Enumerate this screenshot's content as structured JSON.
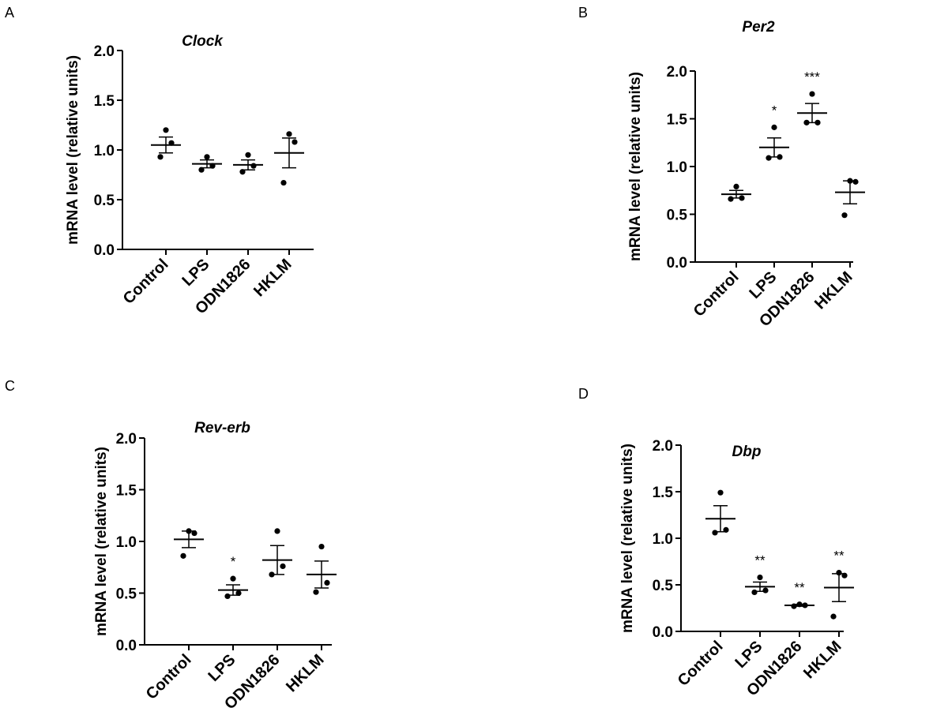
{
  "chart_data": [
    {
      "panel": "A",
      "type": "scatter",
      "title": "Clock",
      "ylabel": "mRNA level (relative units)",
      "categories": [
        "Control",
        "LPS",
        "ODN1826",
        "HKLM"
      ],
      "yticks": [
        "0.0",
        "0.5",
        "1.0",
        "1.5",
        "2.0"
      ],
      "ylim": [
        0,
        2.0
      ],
      "groups": [
        {
          "points": [
            1.2,
            1.07,
            0.93
          ],
          "mean": 1.05,
          "sem": 0.08,
          "annotation": ""
        },
        {
          "points": [
            0.93,
            0.84,
            0.8
          ],
          "mean": 0.86,
          "sem": 0.04,
          "annotation": ""
        },
        {
          "points": [
            0.95,
            0.84,
            0.78
          ],
          "mean": 0.85,
          "sem": 0.05,
          "annotation": ""
        },
        {
          "points": [
            1.16,
            1.08,
            0.67
          ],
          "mean": 0.97,
          "sem": 0.15,
          "annotation": ""
        }
      ]
    },
    {
      "panel": "B",
      "type": "scatter",
      "title": "Per2",
      "ylabel": "mRNA level (relative units)",
      "categories": [
        "Control",
        "LPS",
        "ODN1826",
        "HKLM"
      ],
      "yticks": [
        "0.0",
        "0.5",
        "1.0",
        "1.5",
        "2.0"
      ],
      "ylim": [
        0,
        2.0
      ],
      "groups": [
        {
          "points": [
            0.79,
            0.67,
            0.66
          ],
          "mean": 0.71,
          "sem": 0.04,
          "annotation": ""
        },
        {
          "points": [
            1.41,
            1.1,
            1.09
          ],
          "mean": 1.2,
          "sem": 0.1,
          "annotation": "*"
        },
        {
          "points": [
            1.76,
            1.46,
            1.46
          ],
          "mean": 1.56,
          "sem": 0.1,
          "annotation": "***"
        },
        {
          "points": [
            0.85,
            0.84,
            0.49
          ],
          "mean": 0.73,
          "sem": 0.12,
          "annotation": ""
        }
      ]
    },
    {
      "panel": "C",
      "type": "scatter",
      "title": "Rev-erb",
      "ylabel": "mRNA level (relative units)",
      "categories": [
        "Control",
        "LPS",
        "ODN1826",
        "HKLM"
      ],
      "yticks": [
        "0.0",
        "0.5",
        "1.0",
        "1.5",
        "2.0"
      ],
      "ylim": [
        0,
        2.0
      ],
      "groups": [
        {
          "points": [
            1.1,
            1.08,
            0.86
          ],
          "mean": 1.02,
          "sem": 0.08,
          "annotation": ""
        },
        {
          "points": [
            0.64,
            0.5,
            0.47
          ],
          "mean": 0.53,
          "sem": 0.05,
          "annotation": "*"
        },
        {
          "points": [
            1.1,
            0.76,
            0.68
          ],
          "mean": 0.82,
          "sem": 0.14,
          "annotation": ""
        },
        {
          "points": [
            0.95,
            0.6,
            0.51
          ],
          "mean": 0.68,
          "sem": 0.13,
          "annotation": ""
        }
      ]
    },
    {
      "panel": "D",
      "type": "scatter",
      "title": "Dbp",
      "ylabel": "mRNA level (relative units)",
      "categories": [
        "Control",
        "LPS",
        "ODN1826",
        "HKLM"
      ],
      "yticks": [
        "0.0",
        "0.5",
        "1.0",
        "1.5",
        "2.0"
      ],
      "ylim": [
        0,
        2.0
      ],
      "groups": [
        {
          "points": [
            1.49,
            1.09,
            1.06
          ],
          "mean": 1.21,
          "sem": 0.14,
          "annotation": ""
        },
        {
          "points": [
            0.58,
            0.44,
            0.42
          ],
          "mean": 0.48,
          "sem": 0.05,
          "annotation": "**"
        },
        {
          "points": [
            0.29,
            0.28,
            0.27
          ],
          "mean": 0.28,
          "sem": 0.01,
          "annotation": "**"
        },
        {
          "points": [
            0.63,
            0.6,
            0.16
          ],
          "mean": 0.47,
          "sem": 0.15,
          "annotation": "**"
        }
      ]
    }
  ]
}
